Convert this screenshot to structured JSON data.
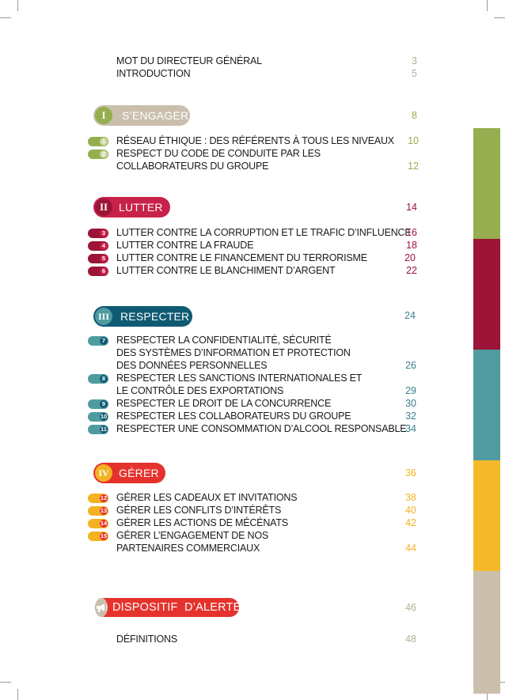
{
  "colors": {
    "s1": "#96ae4f",
    "s1_light": "#cdd8a6",
    "s2": "#c8214a",
    "s2_dark": "#9c1438",
    "s3": "#3b7f8c",
    "s3_dark": "#0f5a73",
    "s4": "#f4b223",
    "s4_red": "#e5322d",
    "tab_beige": "#cabfad"
  },
  "intro": [
    {
      "label": "MOT DU DIRECTEUR GÉNÉRAL",
      "page": "3"
    },
    {
      "label": "INTRODUCTION",
      "page": "5"
    }
  ],
  "sections": [
    {
      "numeral": "I",
      "title": "S’ENGAGER",
      "page": "8",
      "items": [
        {
          "n": "1",
          "lines": [
            "RÉSEAU ÉTHIQUE : DES RÉFÉRENTS À TOUS LES NIVEAUX"
          ],
          "page": "10"
        },
        {
          "n": "2",
          "lines": [
            "RESPECT DU CODE DE CONDUITE PAR LES",
            "COLLABORATEURS DU GROUPE"
          ],
          "page": "12"
        }
      ]
    },
    {
      "numeral": "II",
      "title": "LUTTER",
      "page": "14",
      "items": [
        {
          "n": "3",
          "lines": [
            "LUTTER CONTRE LA CORRUPTION ET LE TRAFIC D’INFLUENCE"
          ],
          "page": "16"
        },
        {
          "n": "4",
          "lines": [
            "LUTTER CONTRE LA FRAUDE"
          ],
          "page": "18"
        },
        {
          "n": "5",
          "lines": [
            "LUTTER CONTRE LE FINANCEMENT DU TERRORISME"
          ],
          "page": "20"
        },
        {
          "n": "6",
          "lines": [
            "LUTTER CONTRE LE BLANCHIMENT D’ARGENT"
          ],
          "page": "22"
        }
      ]
    },
    {
      "numeral": "III",
      "title": "RESPECTER",
      "page": "24",
      "items": [
        {
          "n": "7",
          "lines": [
            "RESPECTER LA CONFIDENTIALITÉ, SÉCURITÉ",
            "DES SYSTÈMES D’INFORMATION ET PROTECTION",
            "DES DONNÉES PERSONNELLES"
          ],
          "page": "26"
        },
        {
          "n": "8",
          "lines": [
            "RESPECTER LES SANCTIONS INTERNATIONALES ET",
            "LE CONTRÔLE DES EXPORTATIONS"
          ],
          "page": "29"
        },
        {
          "n": "9",
          "lines": [
            "RESPECTER LE DROIT DE LA CONCURRENCE"
          ],
          "page": "30"
        },
        {
          "n": "10",
          "lines": [
            "RESPECTER LES COLLABORATEURS DU GROUPE"
          ],
          "page": "32"
        },
        {
          "n": "11",
          "lines": [
            "RESPECTER UNE CONSOMMATION D’ALCOOL RESPONSABLE"
          ],
          "page": "34"
        }
      ]
    },
    {
      "numeral": "IV",
      "title": "GÉRER",
      "page": "36",
      "items": [
        {
          "n": "12",
          "lines": [
            "GÉRER LES CADEAUX ET INVITATIONS"
          ],
          "page": "38"
        },
        {
          "n": "13",
          "lines": [
            "GÉRER LES CONFLITS D’INTÉRÊTS"
          ],
          "page": "40"
        },
        {
          "n": "14",
          "lines": [
            "GÉRER LES ACTIONS DE MÉCÉNATS"
          ],
          "page": "42"
        },
        {
          "n": "15",
          "lines": [
            "GÉRER L’ENGAGEMENT DE NOS",
            "PARTENAIRES COMMERCIAUX"
          ],
          "page": "44"
        }
      ]
    }
  ],
  "alert": {
    "icon": "megaphone-icon",
    "title": "DISPOSITIF  D’ALERTE",
    "page": "46"
  },
  "definitions": {
    "label": "DÉFINITIONS",
    "page": "48"
  }
}
